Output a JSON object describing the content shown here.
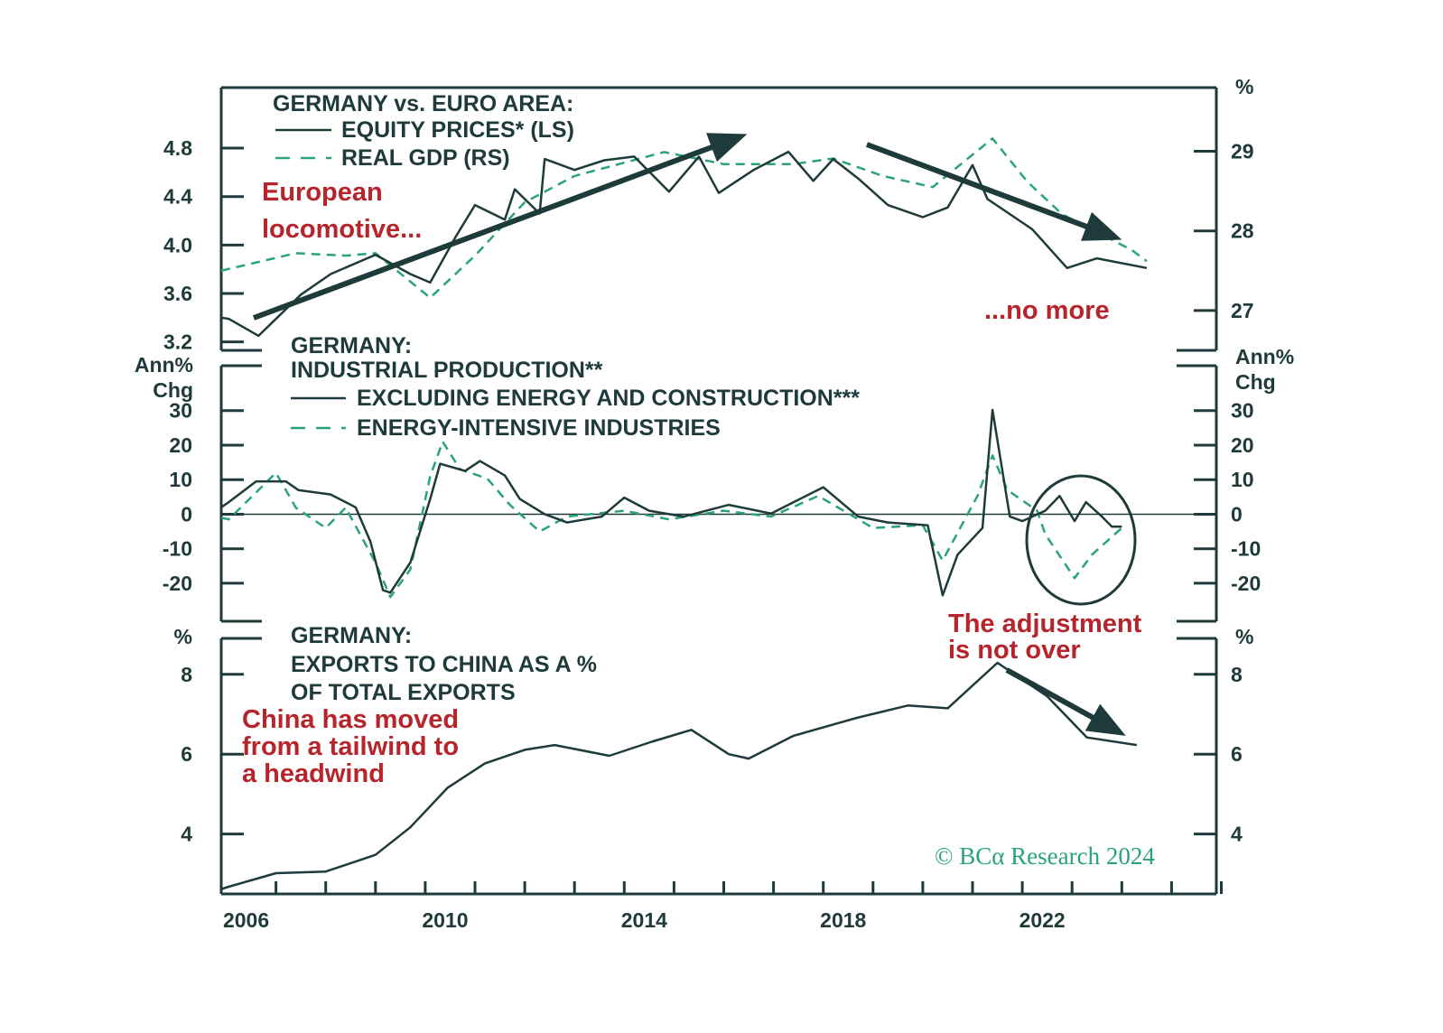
{
  "colors": {
    "dark": "#1e3a3a",
    "green": "#2aa37a",
    "red": "#b5252b"
  },
  "x_axis": {
    "ticks": [
      2006,
      2010,
      2014,
      2018,
      2022
    ],
    "xlim": [
      2005.5,
      2025.5
    ]
  },
  "copyright": "© BCα Research 2024",
  "chart_data": [
    {
      "type": "line",
      "title": [
        "GERMANY vs. EURO AREA:"
      ],
      "left_axis": {
        "ticks": [
          3.2,
          3.6,
          4.0,
          4.4,
          4.8
        ],
        "ylim": [
          3.13,
          5.3
        ]
      },
      "right_axis": {
        "unit": "%",
        "ticks": [
          27,
          28,
          29
        ],
        "ylim": [
          26.5,
          29.8
        ]
      },
      "series": [
        {
          "name": "EQUITY PRICES* (LS)",
          "axis": "left",
          "style": "solid",
          "points": [
            [
              2005.5,
              3.4
            ],
            [
              2005.65,
              3.39
            ],
            [
              2006.25,
              3.25
            ],
            [
              2007.1,
              3.59
            ],
            [
              2007.7,
              3.76
            ],
            [
              2008.6,
              3.92
            ],
            [
              2009.3,
              3.76
            ],
            [
              2009.7,
              3.69
            ],
            [
              2010.2,
              4.06
            ],
            [
              2010.6,
              4.33
            ],
            [
              2011.2,
              4.21
            ],
            [
              2011.4,
              4.46
            ],
            [
              2011.9,
              4.26
            ],
            [
              2012.0,
              4.71
            ],
            [
              2012.6,
              4.62
            ],
            [
              2013.2,
              4.7
            ],
            [
              2013.8,
              4.73
            ],
            [
              2014.5,
              4.44
            ],
            [
              2015.1,
              4.73
            ],
            [
              2015.5,
              4.43
            ],
            [
              2016.2,
              4.62
            ],
            [
              2016.9,
              4.77
            ],
            [
              2017.4,
              4.53
            ],
            [
              2017.8,
              4.71
            ],
            [
              2018.3,
              4.55
            ],
            [
              2018.9,
              4.33
            ],
            [
              2019.6,
              4.23
            ],
            [
              2020.1,
              4.31
            ],
            [
              2020.6,
              4.66
            ],
            [
              2020.9,
              4.38
            ],
            [
              2021.8,
              4.13
            ],
            [
              2022.5,
              3.81
            ],
            [
              2023.1,
              3.89
            ],
            [
              2024.1,
              3.81
            ]
          ]
        },
        {
          "name": "REAL GDP (RS)",
          "axis": "right",
          "style": "dashed",
          "points": [
            [
              2005.5,
              27.5
            ],
            [
              2005.7,
              27.53
            ],
            [
              2007.0,
              27.72
            ],
            [
              2008.0,
              27.69
            ],
            [
              2008.6,
              27.72
            ],
            [
              2009.7,
              27.16
            ],
            [
              2010.6,
              27.69
            ],
            [
              2011.6,
              28.36
            ],
            [
              2012.6,
              28.69
            ],
            [
              2014.4,
              28.99
            ],
            [
              2015.6,
              28.84
            ],
            [
              2017.0,
              28.84
            ],
            [
              2017.8,
              28.91
            ],
            [
              2018.8,
              28.69
            ],
            [
              2019.8,
              28.55
            ],
            [
              2021.0,
              29.16
            ],
            [
              2021.7,
              28.62
            ],
            [
              2022.4,
              28.21
            ],
            [
              2023.8,
              27.76
            ],
            [
              2024.1,
              27.62
            ]
          ]
        }
      ],
      "annotations": [
        "European",
        "locomotive...",
        "...no more"
      ]
    },
    {
      "type": "line",
      "title": [
        "GERMANY:",
        "INDUSTRIAL PRODUCTION**"
      ],
      "axis_label": [
        "Ann%",
        "Chg"
      ],
      "axis": {
        "ticks": [
          -20,
          -10,
          0,
          10,
          20,
          30
        ],
        "ylim": [
          -31,
          43
        ]
      },
      "series": [
        {
          "name": "EXCLUDING ENERGY AND CONSTRUCTION***",
          "style": "solid",
          "points": [
            [
              2005.5,
              2
            ],
            [
              2005.65,
              3.5
            ],
            [
              2006.2,
              9.5
            ],
            [
              2006.8,
              9.5
            ],
            [
              2007.05,
              7
            ],
            [
              2007.7,
              5.7
            ],
            [
              2008.2,
              2
            ],
            [
              2008.5,
              -8
            ],
            [
              2008.75,
              -22
            ],
            [
              2008.9,
              -22.7
            ],
            [
              2009.3,
              -14
            ],
            [
              2009.7,
              4.4
            ],
            [
              2009.9,
              14.6
            ],
            [
              2010.4,
              12.5
            ],
            [
              2010.7,
              15.4
            ],
            [
              2011.2,
              11.2
            ],
            [
              2011.5,
              4.4
            ],
            [
              2012.0,
              0
            ],
            [
              2012.45,
              -2.4
            ],
            [
              2013.15,
              -0.7
            ],
            [
              2013.6,
              4.8
            ],
            [
              2014.1,
              1
            ],
            [
              2014.8,
              -0.7
            ],
            [
              2015.7,
              2.7
            ],
            [
              2016.55,
              0.2
            ],
            [
              2017.6,
              7.8
            ],
            [
              2018.3,
              -0.7
            ],
            [
              2018.9,
              -2.4
            ],
            [
              2019.7,
              -3.2
            ],
            [
              2020.0,
              -23.5
            ],
            [
              2020.3,
              -11.7
            ],
            [
              2020.8,
              -4
            ],
            [
              2021.0,
              30.2
            ],
            [
              2021.35,
              -0.7
            ],
            [
              2021.6,
              -2
            ],
            [
              2022.06,
              1
            ],
            [
              2022.35,
              5.3
            ],
            [
              2022.65,
              -2
            ],
            [
              2022.88,
              3.5
            ],
            [
              2023.2,
              -0.7
            ],
            [
              2023.4,
              -3.6
            ],
            [
              2023.6,
              -3.6
            ]
          ]
        },
        {
          "name": "ENERGY-INTENSIVE INDUSTRIES",
          "style": "dashed",
          "points": [
            [
              2005.5,
              -1
            ],
            [
              2005.65,
              -1.5
            ],
            [
              2006.6,
              12
            ],
            [
              2007.0,
              1.9
            ],
            [
              2007.6,
              -4
            ],
            [
              2008.0,
              1.9
            ],
            [
              2008.6,
              -14
            ],
            [
              2008.9,
              -24
            ],
            [
              2009.3,
              -16
            ],
            [
              2009.7,
              11
            ],
            [
              2009.95,
              21
            ],
            [
              2010.3,
              13
            ],
            [
              2010.85,
              10.3
            ],
            [
              2011.3,
              2.7
            ],
            [
              2011.9,
              -5
            ],
            [
              2012.45,
              -0.7
            ],
            [
              2013.6,
              1
            ],
            [
              2014.5,
              -1.5
            ],
            [
              2015.6,
              1
            ],
            [
              2016.55,
              -0.7
            ],
            [
              2017.5,
              5.3
            ],
            [
              2018.6,
              -4
            ],
            [
              2019.6,
              -3.2
            ],
            [
              2020.0,
              -13.4
            ],
            [
              2020.7,
              5.3
            ],
            [
              2021.0,
              17
            ],
            [
              2021.3,
              7
            ],
            [
              2021.9,
              1
            ],
            [
              2022.06,
              -5.8
            ],
            [
              2022.65,
              -18.5
            ],
            [
              2023.0,
              -11.7
            ],
            [
              2023.6,
              -4
            ]
          ]
        }
      ],
      "annotations": [
        "The adjustment",
        "is not over"
      ]
    },
    {
      "type": "line",
      "title": [
        "GERMANY:",
        "EXPORTS TO CHINA AS A %",
        "OF TOTAL EXPORTS"
      ],
      "axis": {
        "unit": "%",
        "ticks": [
          4,
          6,
          8
        ],
        "ylim": [
          2.5,
          8.9
        ]
      },
      "series": [
        {
          "style": "solid",
          "points": [
            [
              2005.5,
              2.62
            ],
            [
              2005.65,
              2.68
            ],
            [
              2006.6,
              3.02
            ],
            [
              2007.6,
              3.06
            ],
            [
              2008.6,
              3.48
            ],
            [
              2009.3,
              4.17
            ],
            [
              2010.05,
              5.16
            ],
            [
              2010.8,
              5.77
            ],
            [
              2011.6,
              6.11
            ],
            [
              2012.2,
              6.23
            ],
            [
              2013.3,
              5.96
            ],
            [
              2014.15,
              6.31
            ],
            [
              2014.95,
              6.61
            ],
            [
              2015.7,
              6.0
            ],
            [
              2016.1,
              5.89
            ],
            [
              2017.0,
              6.46
            ],
            [
              2018.3,
              6.92
            ],
            [
              2019.3,
              7.22
            ],
            [
              2020.1,
              7.15
            ],
            [
              2021.1,
              8.29
            ],
            [
              2022.1,
              7.45
            ],
            [
              2022.9,
              6.42
            ],
            [
              2023.9,
              6.23
            ]
          ]
        }
      ],
      "annotations": [
        "China has moved",
        "from a tailwind to",
        "a headwind"
      ]
    }
  ]
}
